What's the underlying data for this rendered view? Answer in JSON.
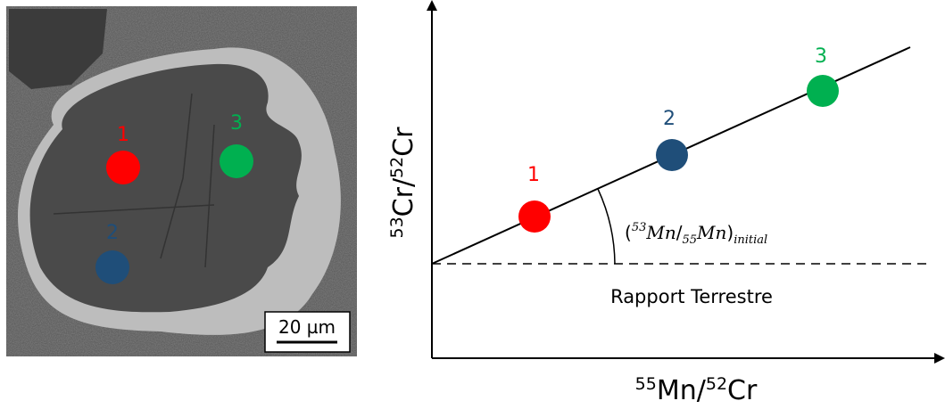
{
  "image_panel": {
    "points": [
      {
        "label": "1"
      },
      {
        "label": "2"
      },
      {
        "label": "3"
      }
    ],
    "scale_bar": "20 µm"
  },
  "diagram": {
    "y_axis_label": [
      "53",
      "Cr/",
      "52",
      "Cr"
    ],
    "x_axis_label": [
      "55",
      "Mn/",
      "52",
      "Cr"
    ],
    "points": [
      {
        "label": "1"
      },
      {
        "label": "2"
      },
      {
        "label": "3"
      }
    ],
    "slope_annotation": [
      "(",
      "53",
      "Mn",
      "/",
      "55",
      "Mn",
      ")",
      "initial"
    ],
    "baseline_label": "Rapport Terrestre"
  }
}
